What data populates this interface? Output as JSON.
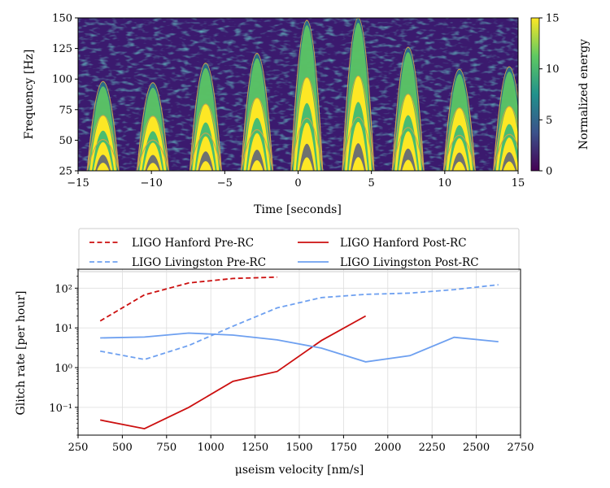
{
  "chart_data": [
    {
      "type": "heatmap",
      "xlabel": "Time [seconds]",
      "ylabel": "Frequency [Hz]",
      "xlim": [
        -15,
        15
      ],
      "ylim": [
        25,
        150
      ],
      "xticks": [
        "−15",
        "−10",
        "−5",
        "0",
        "5",
        "10",
        "15"
      ],
      "yticks": [
        "25",
        "50",
        "75",
        "100",
        "125",
        "150"
      ],
      "colorbar": {
        "label": "Normalized energy",
        "range": [
          0,
          15
        ],
        "ticks": [
          "0",
          "5",
          "10",
          "15"
        ]
      },
      "colormap": [
        "#440154",
        "#3b528b",
        "#21918c",
        "#5ec962",
        "#fde725"
      ],
      "arches": [
        {
          "center": -13.3,
          "peak": 98
        },
        {
          "center": -9.9,
          "peak": 97
        },
        {
          "center": -6.3,
          "peak": 113
        },
        {
          "center": -2.8,
          "peak": 121
        },
        {
          "center": 0.6,
          "peak": 148
        },
        {
          "center": 4.1,
          "peak": 150
        },
        {
          "center": 7.5,
          "peak": 126
        },
        {
          "center": 11.0,
          "peak": 108
        },
        {
          "center": 14.4,
          "peak": 110
        }
      ]
    },
    {
      "type": "line",
      "xlabel": "μseism velocity [nm/s]",
      "ylabel": "Glitch rate [per hour]",
      "xlim": [
        250,
        2750
      ],
      "ylim": [
        0.02,
        300
      ],
      "yscale": "log",
      "xticks": [
        "250",
        "500",
        "750",
        "1000",
        "1250",
        "1500",
        "1750",
        "2000",
        "2250",
        "2500",
        "2750"
      ],
      "yticks": [
        "10⁻¹",
        "10⁰",
        "10¹",
        "10²"
      ],
      "grid": true,
      "legend_position": "top",
      "series": [
        {
          "name": "LIGO Hanford Pre-RC",
          "color": "#cc0f0f",
          "dash": "dashed",
          "x": [
            375,
            625,
            875,
            1125,
            1375
          ],
          "y": [
            15,
            68,
            135,
            175,
            190
          ]
        },
        {
          "name": "LIGO Hanford Post-RC",
          "color": "#cc0f0f",
          "dash": "solid",
          "x": [
            375,
            625,
            875,
            1125,
            1375,
            1625,
            1875
          ],
          "y": [
            0.048,
            0.029,
            0.1,
            0.45,
            0.8,
            4.8,
            20
          ]
        },
        {
          "name": "LIGO Livingston Pre-RC",
          "color": "#6ea0f0",
          "dash": "dashed",
          "x": [
            375,
            625,
            875,
            1125,
            1375,
            1625,
            1875,
            2125,
            2375,
            2625
          ],
          "y": [
            2.6,
            1.6,
            3.6,
            11,
            32,
            58,
            70,
            75,
            92,
            122
          ]
        },
        {
          "name": "LIGO Livingston Post-RC",
          "color": "#6ea0f0",
          "dash": "solid",
          "x": [
            375,
            625,
            875,
            1125,
            1375,
            1625,
            1875,
            2125,
            2375,
            2625
          ],
          "y": [
            5.6,
            5.9,
            7.4,
            6.6,
            5.0,
            3.1,
            1.4,
            2.0,
            5.8,
            4.5
          ]
        }
      ]
    }
  ]
}
